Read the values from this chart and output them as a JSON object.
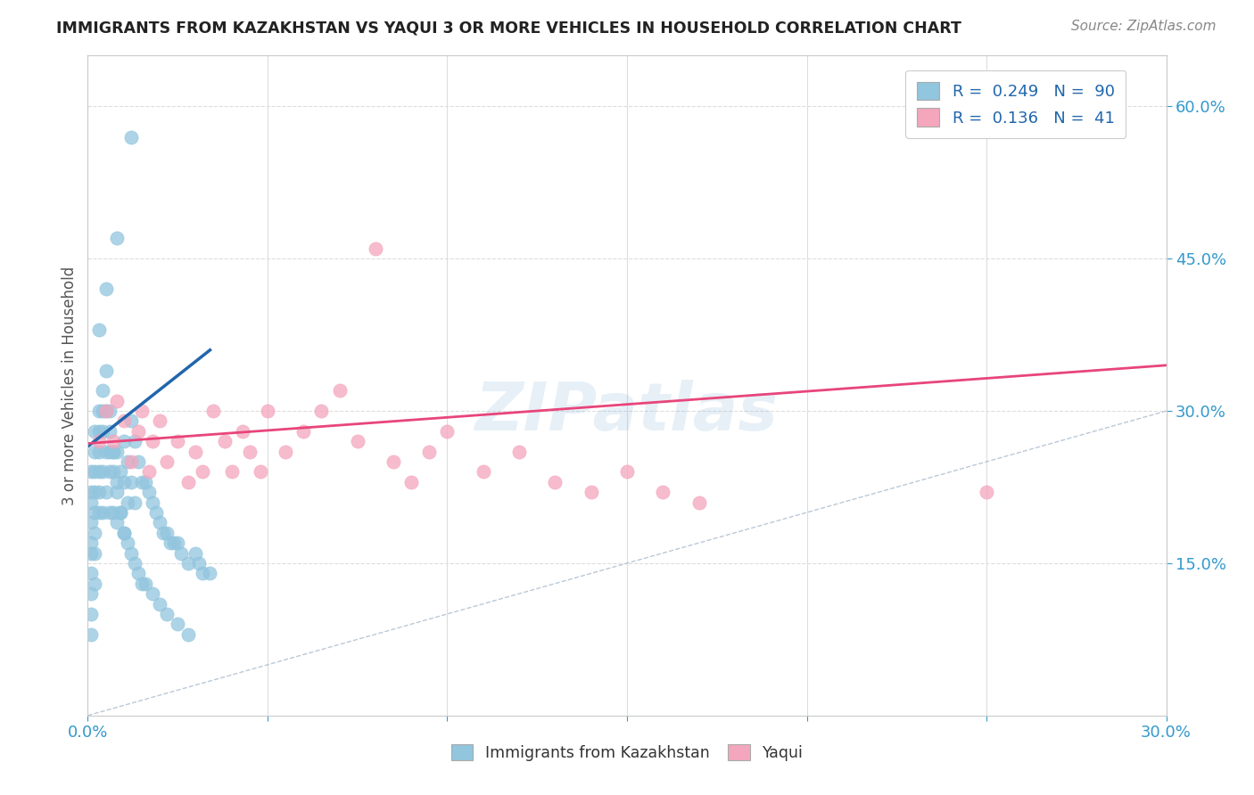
{
  "title": "IMMIGRANTS FROM KAZAKHSTAN VS YAQUI 3 OR MORE VEHICLES IN HOUSEHOLD CORRELATION CHART",
  "source_text": "Source: ZipAtlas.com",
  "ylabel": "3 or more Vehicles in Household",
  "xlim": [
    0.0,
    0.3
  ],
  "ylim": [
    0.0,
    0.65
  ],
  "xtick_positions": [
    0.0,
    0.05,
    0.1,
    0.15,
    0.2,
    0.25,
    0.3
  ],
  "xticklabels": [
    "0.0%",
    "",
    "",
    "",
    "",
    "",
    "30.0%"
  ],
  "yticks_right": [
    0.15,
    0.3,
    0.45,
    0.6
  ],
  "ytick_right_labels": [
    "15.0%",
    "30.0%",
    "45.0%",
    "60.0%"
  ],
  "blue_color": "#92C5DE",
  "pink_color": "#F4A6BD",
  "blue_line_color": "#2166AC",
  "pink_line_color": "#E8457A",
  "diagonal_color": "#AABBCC",
  "watermark": "ZIPatlas",
  "background_color": "#FFFFFF",
  "blue_scatter_x": [
    0.001,
    0.001,
    0.001,
    0.001,
    0.001,
    0.001,
    0.001,
    0.001,
    0.001,
    0.001,
    0.002,
    0.002,
    0.002,
    0.002,
    0.002,
    0.002,
    0.002,
    0.002,
    0.003,
    0.003,
    0.003,
    0.003,
    0.003,
    0.003,
    0.004,
    0.004,
    0.004,
    0.004,
    0.004,
    0.005,
    0.005,
    0.005,
    0.005,
    0.006,
    0.006,
    0.006,
    0.006,
    0.007,
    0.007,
    0.007,
    0.008,
    0.008,
    0.008,
    0.009,
    0.009,
    0.01,
    0.01,
    0.01,
    0.011,
    0.011,
    0.012,
    0.012,
    0.013,
    0.013,
    0.014,
    0.015,
    0.016,
    0.017,
    0.018,
    0.019,
    0.02,
    0.021,
    0.022,
    0.023,
    0.024,
    0.025,
    0.026,
    0.028,
    0.03,
    0.031,
    0.032,
    0.034,
    0.006,
    0.007,
    0.008,
    0.009,
    0.01,
    0.011,
    0.012,
    0.013,
    0.014,
    0.015,
    0.016,
    0.018,
    0.02,
    0.022,
    0.025,
    0.028,
    0.012,
    0.008,
    0.005,
    0.003
  ],
  "blue_scatter_y": [
    0.24,
    0.22,
    0.21,
    0.19,
    0.17,
    0.16,
    0.14,
    0.12,
    0.1,
    0.08,
    0.28,
    0.26,
    0.24,
    0.22,
    0.2,
    0.18,
    0.16,
    0.13,
    0.3,
    0.28,
    0.26,
    0.24,
    0.22,
    0.2,
    0.32,
    0.3,
    0.28,
    0.24,
    0.2,
    0.34,
    0.3,
    0.26,
    0.22,
    0.28,
    0.26,
    0.24,
    0.2,
    0.26,
    0.24,
    0.2,
    0.26,
    0.23,
    0.19,
    0.24,
    0.2,
    0.27,
    0.23,
    0.18,
    0.25,
    0.21,
    0.29,
    0.23,
    0.27,
    0.21,
    0.25,
    0.23,
    0.23,
    0.22,
    0.21,
    0.2,
    0.19,
    0.18,
    0.18,
    0.17,
    0.17,
    0.17,
    0.16,
    0.15,
    0.16,
    0.15,
    0.14,
    0.14,
    0.3,
    0.26,
    0.22,
    0.2,
    0.18,
    0.17,
    0.16,
    0.15,
    0.14,
    0.13,
    0.13,
    0.12,
    0.11,
    0.1,
    0.09,
    0.08,
    0.57,
    0.47,
    0.42,
    0.38
  ],
  "pink_scatter_x": [
    0.003,
    0.005,
    0.007,
    0.008,
    0.01,
    0.012,
    0.014,
    0.015,
    0.017,
    0.018,
    0.02,
    0.022,
    0.025,
    0.028,
    0.03,
    0.032,
    0.035,
    0.038,
    0.04,
    0.043,
    0.045,
    0.048,
    0.05,
    0.055,
    0.06,
    0.065,
    0.07,
    0.075,
    0.08,
    0.085,
    0.09,
    0.095,
    0.1,
    0.11,
    0.12,
    0.13,
    0.14,
    0.15,
    0.16,
    0.17,
    0.25
  ],
  "pink_scatter_y": [
    0.27,
    0.3,
    0.27,
    0.31,
    0.29,
    0.25,
    0.28,
    0.3,
    0.24,
    0.27,
    0.29,
    0.25,
    0.27,
    0.23,
    0.26,
    0.24,
    0.3,
    0.27,
    0.24,
    0.28,
    0.26,
    0.24,
    0.3,
    0.26,
    0.28,
    0.3,
    0.32,
    0.27,
    0.46,
    0.25,
    0.23,
    0.26,
    0.28,
    0.24,
    0.26,
    0.23,
    0.22,
    0.24,
    0.22,
    0.21,
    0.22
  ],
  "blue_line_x0": 0.0,
  "blue_line_x1": 0.034,
  "blue_line_y0": 0.265,
  "blue_line_y1": 0.36,
  "pink_line_x0": 0.0,
  "pink_line_x1": 0.3,
  "pink_line_y0": 0.268,
  "pink_line_y1": 0.345
}
